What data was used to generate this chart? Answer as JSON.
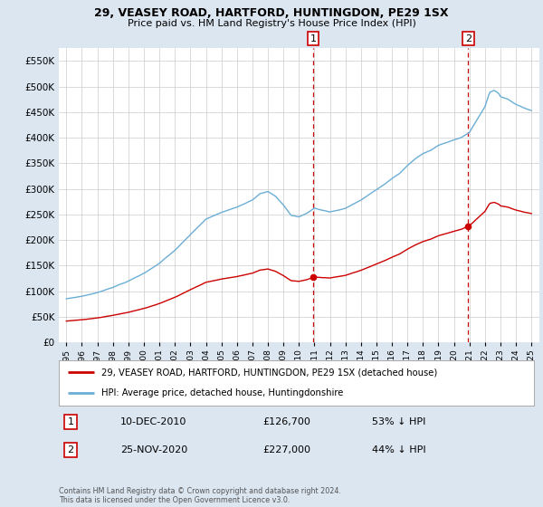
{
  "title": "29, VEASEY ROAD, HARTFORD, HUNTINGDON, PE29 1SX",
  "subtitle": "Price paid vs. HM Land Registry's House Price Index (HPI)",
  "legend_entry1": "29, VEASEY ROAD, HARTFORD, HUNTINGDON, PE29 1SX (detached house)",
  "legend_entry2": "HPI: Average price, detached house, Huntingdonshire",
  "annotation1_label": "1",
  "annotation1_date": "10-DEC-2010",
  "annotation1_price": "£126,700",
  "annotation1_pct": "53% ↓ HPI",
  "annotation2_label": "2",
  "annotation2_date": "25-NOV-2020",
  "annotation2_price": "£227,000",
  "annotation2_pct": "44% ↓ HPI",
  "footer": "Contains HM Land Registry data © Crown copyright and database right 2024.\nThis data is licensed under the Open Government Licence v3.0.",
  "sale1_year": 2010.92,
  "sale1_price": 126700,
  "sale2_year": 2020.92,
  "sale2_price": 227000,
  "hpi_color": "#6baed6",
  "price_color": "#cc0000",
  "vline_color": "#cc0000",
  "bg_color": "#dce6f1",
  "plot_bg": "#ffffff",
  "grid_color": "#cccccc",
  "ylim_min": 0,
  "ylim_max": 575000,
  "xmin": 1994.5,
  "xmax": 2025.5
}
